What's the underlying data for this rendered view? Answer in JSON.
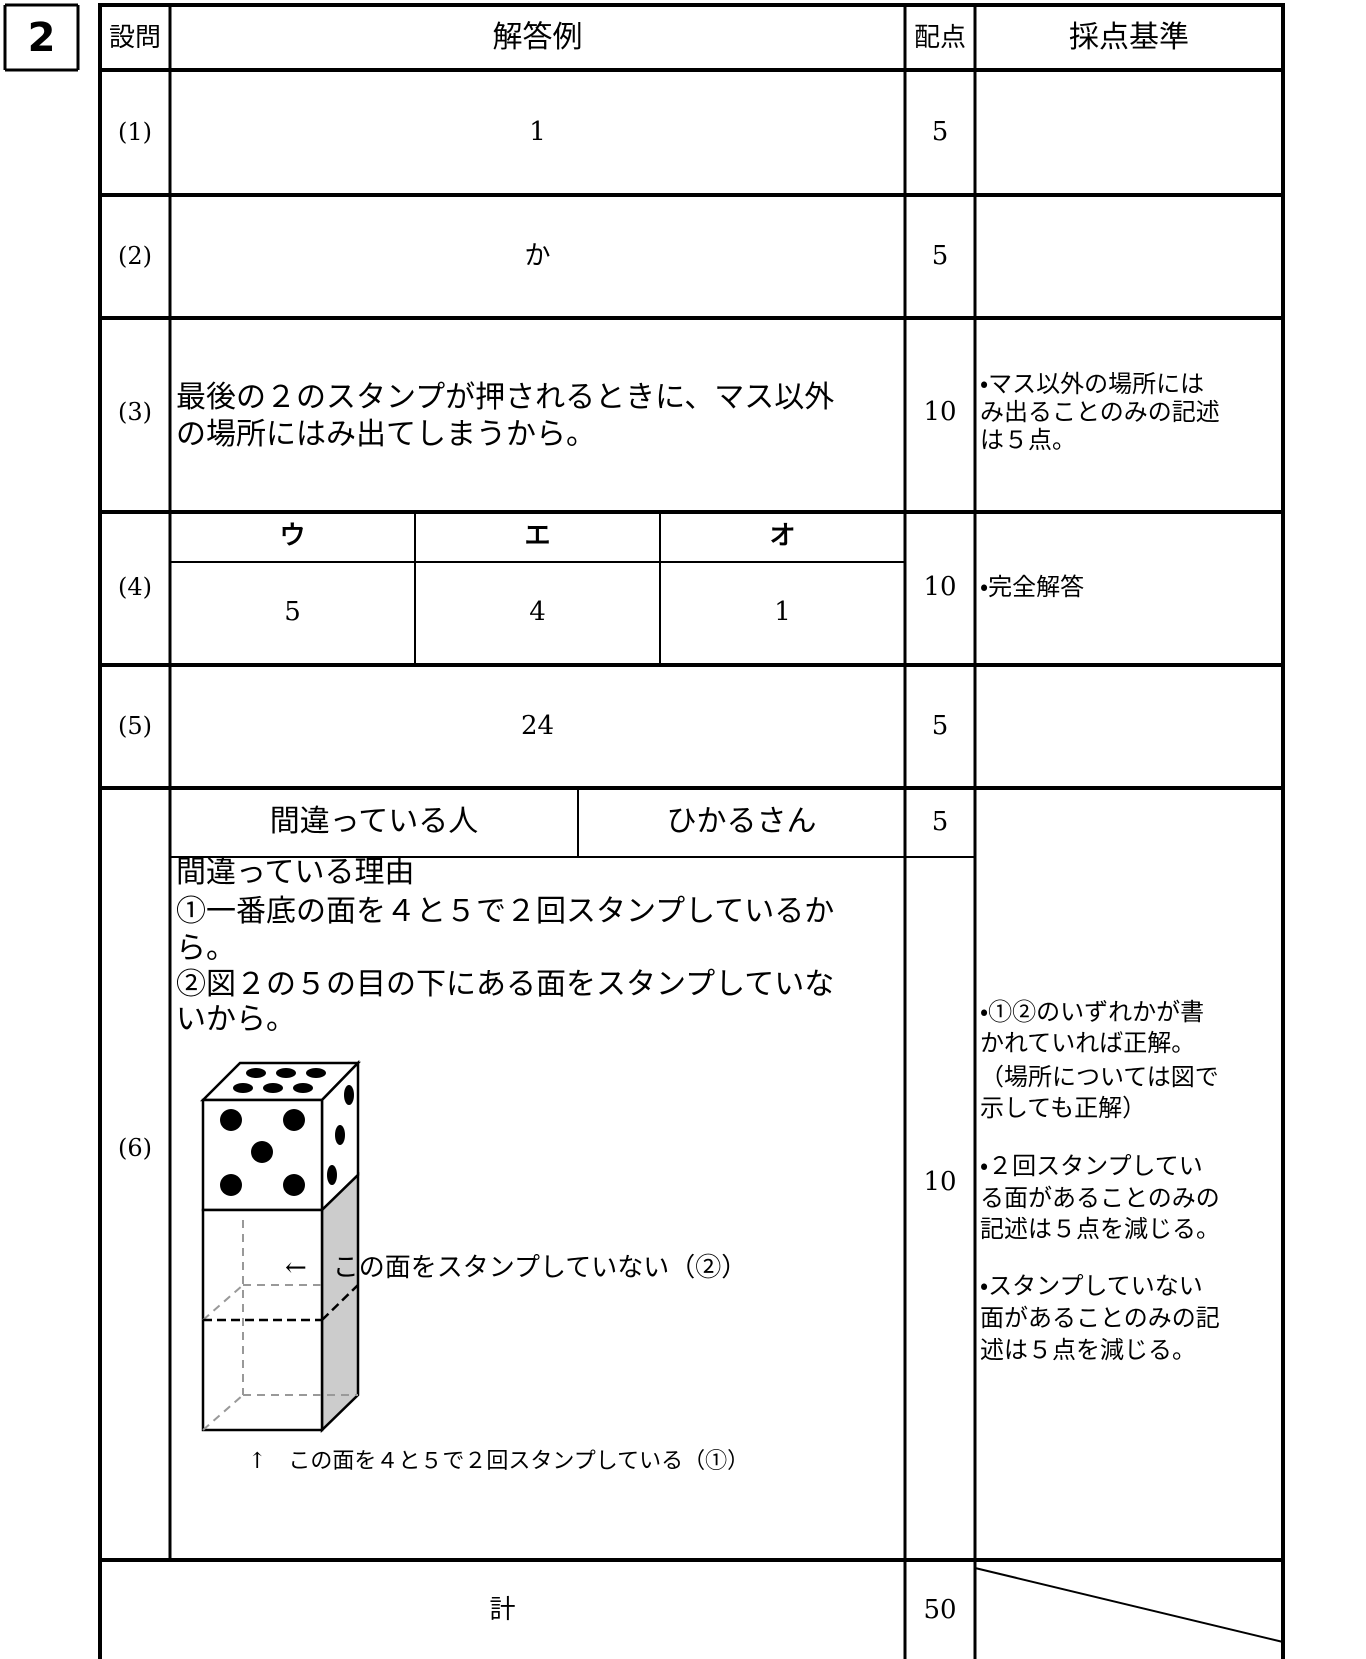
{
  "section_number": "2",
  "table": {
    "headers": [
      "設問",
      "解答例",
      "配点",
      "採点基準"
    ],
    "rows": [
      {
        "question": "(1)",
        "answer": "1",
        "points": "5"
      },
      {
        "question": "(2)",
        "answer": "か",
        "points": "5"
      },
      {
        "question": "(3)",
        "answer": [
          "最後の２のスタンプが押されるときに、マス以外",
          "の場所にはみ出てしまうから。"
        ],
        "points": "10",
        "criteria": [
          "・マス以外の場所には",
          "み出ることのみの記述",
          "は５点。"
        ]
      },
      {
        "question": "(4)",
        "answer": {
          "headers": [
            "ウ",
            "エ",
            "オ"
          ],
          "values": [
            "5",
            "4",
            "1"
          ]
        },
        "points": "10",
        "criteria": [
          "・完全解答"
        ]
      },
      {
        "question": "(5)",
        "answer": "24",
        "points": "5"
      },
      {
        "question": "(6)",
        "person_label": "間違っている人",
        "person": "ひかるさん",
        "person_points": "5",
        "reason": [
          "間違っている理由",
          "①一番底の面を４と５で２回スタンプしているか",
          "ら。",
          "②図２の５の目の下にある面をスタンプしていな",
          "いから。"
        ],
        "figure_labels": [
          "←　この面をスタンプしていない（②）",
          "↑　この面を４と５で２回スタンプしている（①）"
        ],
        "points": "10",
        "criteria": [
          "・①②のいずれかが書",
          "かれていれば正解。",
          "（場所については図で",
          "示しても正解）",
          "・２回スタンプしてい",
          "る面があることのみの",
          "記述は５点を減じる。",
          "・スタンプしていない",
          "面があることのみの記",
          "述は５点を減じる。"
        ]
      }
    ],
    "total": {
      "label": "計",
      "points": "50"
    }
  }
}
